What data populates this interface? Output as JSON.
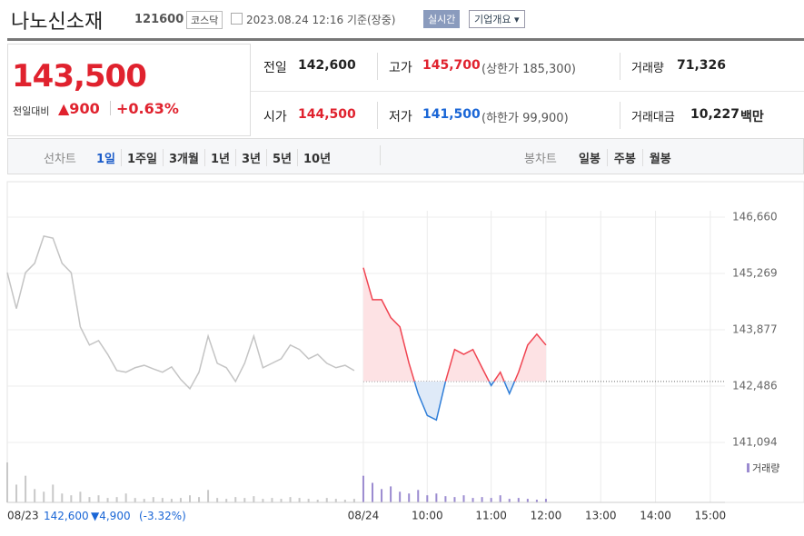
{
  "header": {
    "name": "나노신소재",
    "code": "121600",
    "market": "코스닥",
    "datetime": "2023.08.24 12:16 기준(장중)",
    "realtime_button": "실시간",
    "overview_button": "기업개요 ▾"
  },
  "price": {
    "current": "143,500",
    "change_label": "전일대비",
    "change": "▲900",
    "rate": "+0.63%"
  },
  "stats": {
    "prev": {
      "label": "전일",
      "value": "142,600"
    },
    "high": {
      "label": "고가",
      "value": "145,700",
      "limit": "(상한가 185,300)"
    },
    "volume": {
      "label": "거래량",
      "value": "71,326"
    },
    "open": {
      "label": "시가",
      "value": "144,500"
    },
    "low": {
      "label": "저가",
      "value": "141,500",
      "limit": "(하한가 99,900)"
    },
    "amount": {
      "label": "거래대금",
      "value": "10,227",
      "unit": "백만"
    }
  },
  "tabs": {
    "line_label": "선차트",
    "periods": [
      "1일",
      "1주일",
      "3개월",
      "1년",
      "3년",
      "5년",
      "10년"
    ],
    "candle_label": "봉차트",
    "candle_periods": [
      "일봉",
      "주봉",
      "월봉"
    ]
  },
  "chart_data": {
    "type": "line",
    "categories": [
      "08/23",
      null,
      null,
      null,
      null,
      null,
      null,
      null,
      null,
      null,
      null,
      null,
      null,
      null,
      null,
      null,
      null,
      null,
      null,
      null,
      null,
      null,
      null,
      null,
      null,
      null,
      null,
      null,
      null,
      null,
      null,
      null,
      null,
      null,
      null,
      null,
      null,
      null,
      null,
      "08/24",
      null,
      null,
      null,
      null,
      null,
      null,
      "10:00",
      null,
      null,
      null,
      null,
      null,
      null,
      "11:00",
      null,
      null,
      null,
      null,
      null,
      "12:00",
      null,
      null,
      null,
      null,
      null,
      "13:00",
      null,
      null,
      null,
      null,
      null,
      "14:00",
      null,
      null,
      null,
      null,
      null,
      "15:00",
      null,
      null
    ],
    "series": [
      {
        "color": "#c4c4c4",
        "values": [
          145290,
          144400,
          145290,
          145520,
          146190,
          146140,
          145520,
          145290,
          143950,
          143500,
          143610,
          143270,
          142870,
          142830,
          142940,
          143000,
          142910,
          142830,
          142960,
          142650,
          142420,
          142830,
          143720,
          143050,
          142940,
          142600,
          143050,
          143720,
          142940,
          143050,
          143160,
          143500,
          143390,
          143160,
          143270,
          143050,
          142940,
          143000,
          142870,
          null,
          null,
          null,
          null,
          null,
          null,
          null,
          null,
          null,
          null,
          null,
          null,
          null,
          null,
          null,
          null,
          null,
          null,
          null,
          null,
          null,
          null,
          null,
          null,
          null,
          null,
          null,
          null,
          null,
          null,
          null,
          null,
          null,
          null,
          null,
          null,
          null,
          null,
          null,
          null,
          null
        ]
      },
      {
        "color": "#f04451",
        "down_color": "#2f7ed8",
        "fill": "#fde2e4",
        "down_fill": "#dfeaf8",
        "values": [
          null,
          null,
          null,
          null,
          null,
          null,
          null,
          null,
          null,
          null,
          null,
          null,
          null,
          null,
          null,
          null,
          null,
          null,
          null,
          null,
          null,
          null,
          null,
          null,
          null,
          null,
          null,
          null,
          null,
          null,
          null,
          null,
          null,
          null,
          null,
          null,
          null,
          null,
          null,
          145410,
          144620,
          144620,
          144180,
          143950,
          143050,
          142300,
          141760,
          141650,
          142600,
          143390,
          143270,
          143390,
          142940,
          142500,
          142830,
          142300,
          142830,
          143500,
          143770,
          143500,
          null,
          null,
          null,
          null,
          null,
          null,
          null,
          null,
          null,
          null,
          null,
          null,
          null,
          null,
          null,
          null,
          null,
          null,
          null,
          null
        ]
      }
    ],
    "reference_line": 142600,
    "ylim": [
      140915,
      146817
    ],
    "yticks": [
      {
        "value": 146660,
        "label": "146,660"
      },
      {
        "value": 145269,
        "label": "145,269"
      },
      {
        "value": 143877,
        "label": "143,877"
      },
      {
        "value": 142486,
        "label": "142,486"
      },
      {
        "value": 141094,
        "label": "141,094"
      }
    ],
    "grid": true,
    "volume_label": "거래량",
    "volume": [
      {
        "color": "#c8c8c8",
        "values": [
          45,
          20,
          30,
          15,
          12,
          20,
          10,
          8,
          12,
          6,
          8,
          5,
          6,
          10,
          5,
          4,
          6,
          5,
          4,
          5,
          8,
          6,
          14,
          5,
          4,
          6,
          5,
          7,
          4,
          5,
          4,
          6,
          5,
          4,
          3,
          5,
          4,
          3,
          4,
          null,
          null,
          null,
          null,
          null,
          null,
          null,
          null,
          null,
          null,
          null,
          null,
          null,
          null,
          null,
          null,
          null,
          null,
          null,
          null,
          null,
          null,
          null,
          null,
          null,
          null,
          null,
          null,
          null,
          null,
          null,
          null,
          null,
          null,
          null,
          null,
          null,
          null,
          null,
          null,
          null
        ]
      },
      {
        "color": "#9b8bd0",
        "values": [
          null,
          null,
          null,
          null,
          null,
          null,
          null,
          null,
          null,
          null,
          null,
          null,
          null,
          null,
          null,
          null,
          null,
          null,
          null,
          null,
          null,
          null,
          null,
          null,
          null,
          null,
          null,
          null,
          null,
          null,
          null,
          null,
          null,
          null,
          null,
          null,
          null,
          null,
          null,
          30,
          22,
          15,
          18,
          12,
          10,
          14,
          8,
          10,
          7,
          6,
          8,
          5,
          6,
          5,
          8,
          4,
          5,
          4,
          3,
          4,
          null,
          null,
          null,
          null,
          null,
          null,
          null,
          null,
          null,
          null,
          null,
          null,
          null,
          null,
          null,
          null,
          null,
          null,
          null,
          null
        ]
      }
    ]
  },
  "footer": {
    "close": "142,600",
    "change": "▼4,900",
    "rate": "(-3.32%)"
  }
}
